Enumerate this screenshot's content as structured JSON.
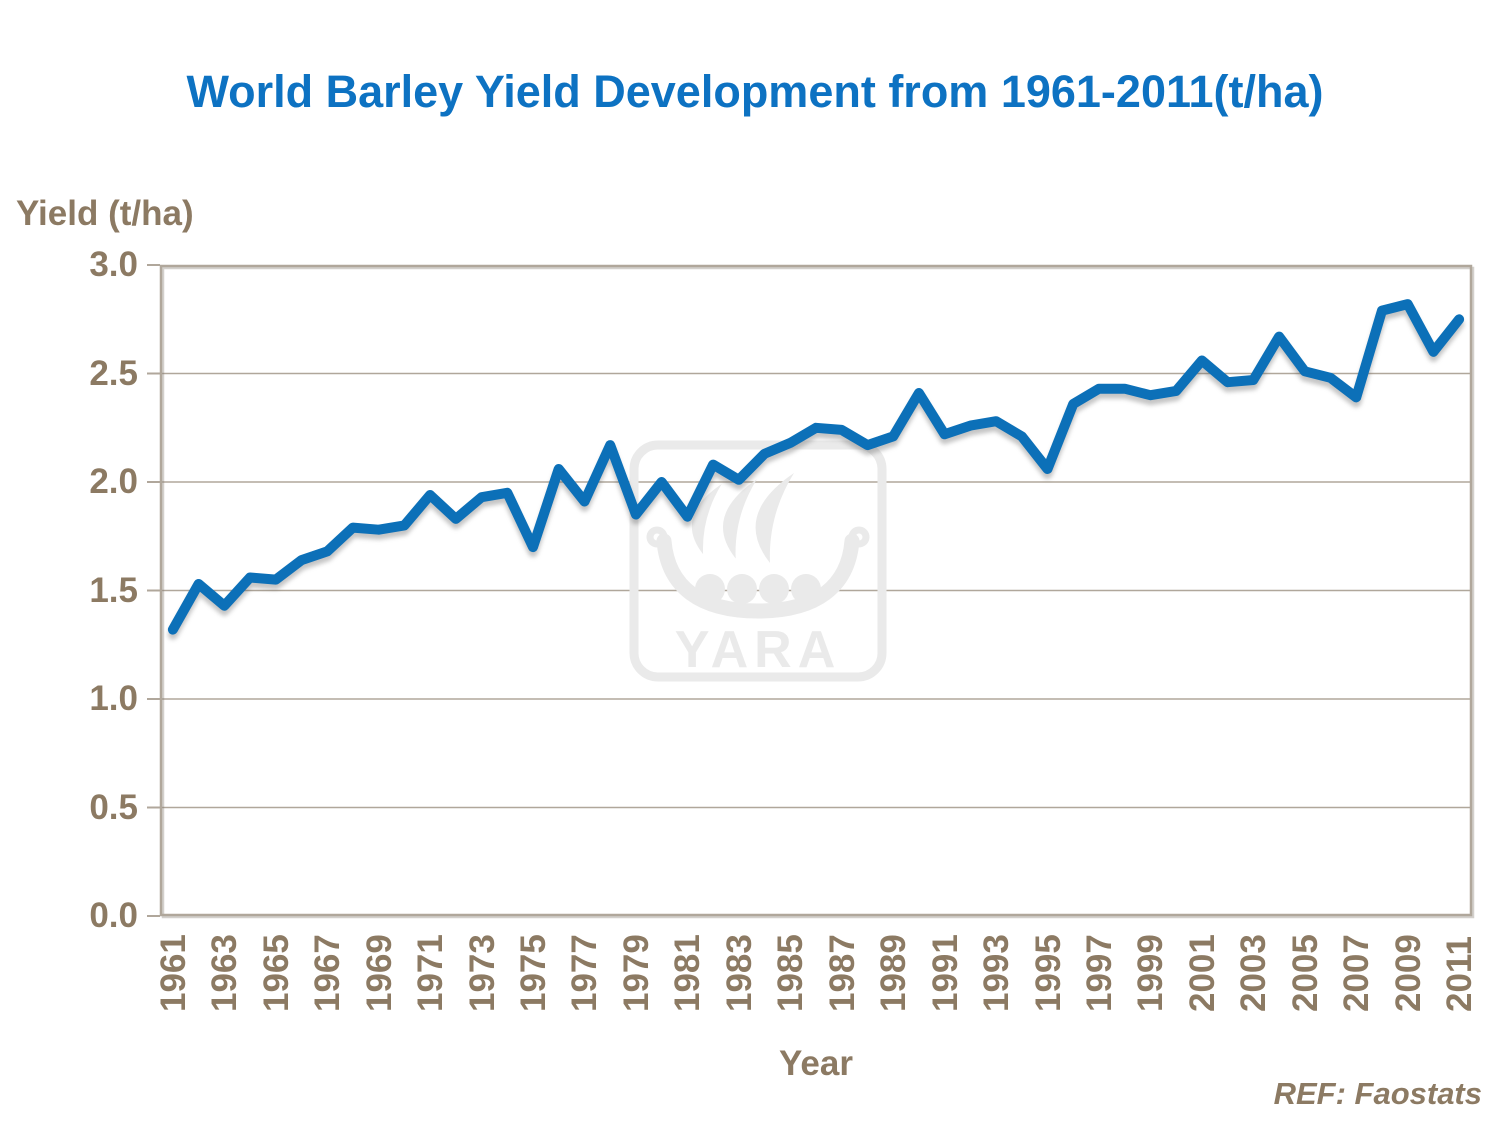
{
  "title": "World Barley Yield Development from 1961-2011(t/ha)",
  "ref_note": "REF: Faostats",
  "watermark_text": "YARA",
  "colors": {
    "title_blue": "#0D72C2",
    "line_blue": "#0C70B8",
    "label_brown": "#8C7A63",
    "grid": "#B0A79B",
    "watermark_gray": "#EAEAEA"
  },
  "chart_data": {
    "type": "line",
    "title": "World Barley Yield Development from 1961-2011(t/ha)",
    "xlabel": "Year",
    "ylabel": "Yield (t/ha)",
    "ylim": [
      0.0,
      3.0
    ],
    "ytick_step": 0.5,
    "ytick_labels": [
      "0.0",
      "0.5",
      "1.0",
      "1.5",
      "2.0",
      "2.5",
      "3.0"
    ],
    "xtick_labels_shown": "every odd year 1961-2011, rotated 90°",
    "grid": "horizontal gridlines on",
    "legend": "none",
    "x": [
      1961,
      1962,
      1963,
      1964,
      1965,
      1966,
      1967,
      1968,
      1969,
      1970,
      1971,
      1972,
      1973,
      1974,
      1975,
      1976,
      1977,
      1978,
      1979,
      1980,
      1981,
      1982,
      1983,
      1984,
      1985,
      1986,
      1987,
      1988,
      1989,
      1990,
      1991,
      1992,
      1993,
      1994,
      1995,
      1996,
      1997,
      1998,
      1999,
      2000,
      2001,
      2002,
      2003,
      2004,
      2005,
      2006,
      2007,
      2008,
      2009,
      2010,
      2011
    ],
    "values": [
      1.32,
      1.53,
      1.43,
      1.56,
      1.55,
      1.64,
      1.68,
      1.79,
      1.78,
      1.8,
      1.94,
      1.83,
      1.93,
      1.95,
      1.7,
      2.06,
      1.91,
      2.17,
      1.85,
      2.0,
      1.84,
      2.08,
      2.01,
      2.13,
      2.18,
      2.25,
      2.24,
      2.17,
      2.21,
      2.41,
      2.22,
      2.26,
      2.28,
      2.21,
      2.06,
      2.36,
      2.43,
      2.43,
      2.4,
      2.42,
      2.56,
      2.46,
      2.47,
      2.67,
      2.51,
      2.48,
      2.39,
      2.79,
      2.82,
      2.6,
      2.75
    ]
  }
}
